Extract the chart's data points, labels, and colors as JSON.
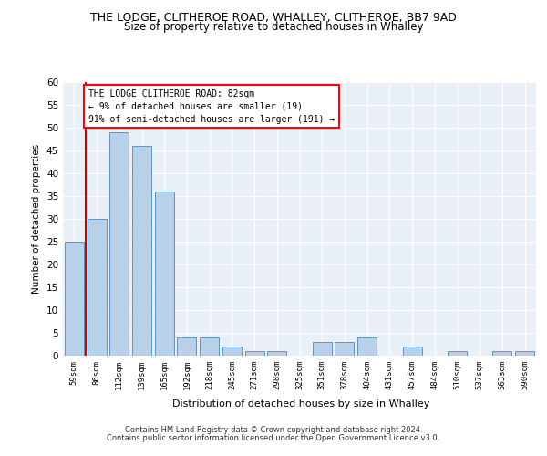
{
  "title": "THE LODGE, CLITHEROE ROAD, WHALLEY, CLITHEROE, BB7 9AD",
  "subtitle": "Size of property relative to detached houses in Whalley",
  "xlabel": "Distribution of detached houses by size in Whalley",
  "ylabel": "Number of detached properties",
  "categories": [
    "59sqm",
    "86sqm",
    "112sqm",
    "139sqm",
    "165sqm",
    "192sqm",
    "218sqm",
    "245sqm",
    "271sqm",
    "298sqm",
    "325sqm",
    "351sqm",
    "378sqm",
    "404sqm",
    "431sqm",
    "457sqm",
    "484sqm",
    "510sqm",
    "537sqm",
    "563sqm",
    "590sqm"
  ],
  "values": [
    25,
    30,
    49,
    46,
    36,
    4,
    4,
    2,
    1,
    1,
    0,
    3,
    3,
    4,
    0,
    2,
    0,
    1,
    0,
    1,
    1
  ],
  "bar_color": "#b8d0e8",
  "bar_edge_color": "#5a96c8",
  "highlight_color": "#cc0000",
  "annotation_title": "THE LODGE CLITHEROE ROAD: 82sqm",
  "annotation_line1": "← 9% of detached houses are smaller (19)",
  "annotation_line2": "91% of semi-detached houses are larger (191) →",
  "ylim": [
    0,
    60
  ],
  "yticks": [
    0,
    5,
    10,
    15,
    20,
    25,
    30,
    35,
    40,
    45,
    50,
    55,
    60
  ],
  "footer1": "Contains HM Land Registry data © Crown copyright and database right 2024.",
  "footer2": "Contains public sector information licensed under the Open Government Licence v3.0.",
  "bg_color": "#eaf0f7",
  "title_fontsize": 9,
  "subtitle_fontsize": 8.5
}
